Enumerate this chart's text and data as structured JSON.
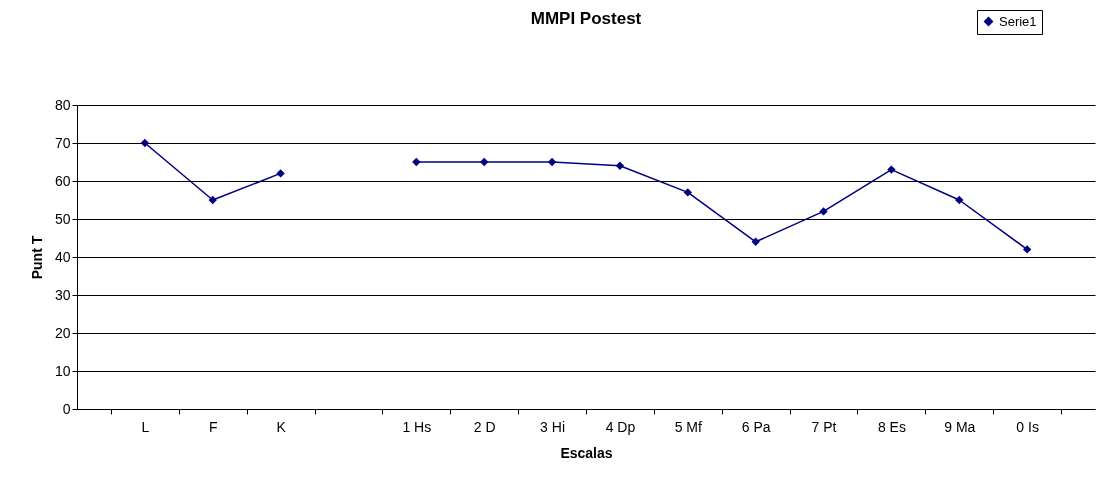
{
  "chart_data": {
    "type": "line",
    "title": "MMPI Postest",
    "xlabel": "Escalas",
    "ylabel": "Punt T",
    "categories": [
      "L",
      "F",
      "K",
      null,
      "1 Hs",
      "2 D",
      "3 Hi",
      "4 Dp",
      "5 Mf",
      "6 Pa",
      "7 Pt",
      "8 Es",
      "9 Ma",
      "0 Is"
    ],
    "series": [
      {
        "name": "Serie1",
        "color": "#000080",
        "values": [
          70,
          55,
          62,
          null,
          65,
          65,
          65,
          64,
          57,
          44,
          52,
          63,
          55,
          42
        ]
      }
    ],
    "ylim": [
      0,
      80
    ],
    "yticks": [
      0,
      10,
      20,
      30,
      40,
      50,
      60,
      70,
      80
    ],
    "grid": "y",
    "legend": "top right",
    "marker": "diamond",
    "line_style": "solid"
  }
}
